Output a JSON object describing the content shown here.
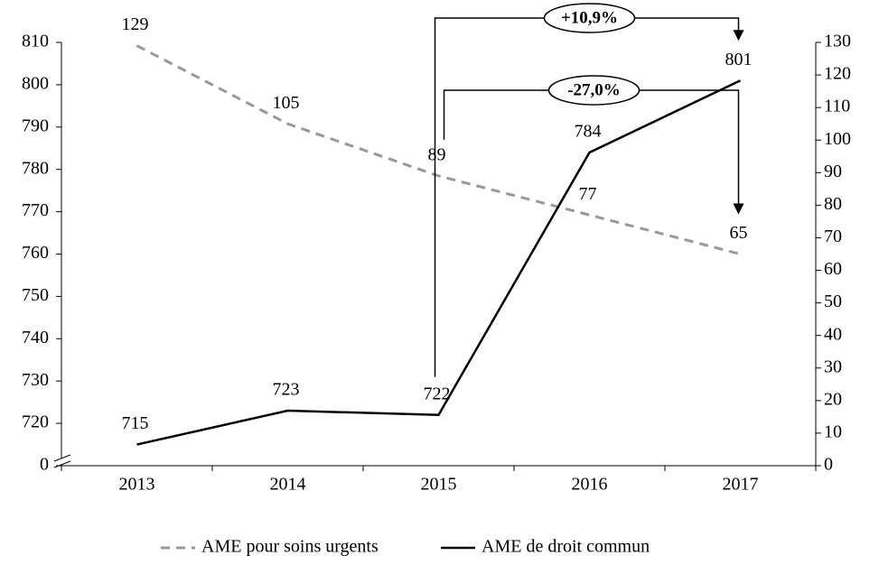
{
  "chart_data": {
    "type": "line",
    "categories": [
      "2013",
      "2014",
      "2015",
      "2016",
      "2017"
    ],
    "series": [
      {
        "name": "AME pour soins urgents",
        "color": "#999999",
        "dash": true,
        "axis": "y2",
        "values": [
          129,
          105,
          89,
          77,
          65
        ]
      },
      {
        "name": "AME de droit commun",
        "color": "#000000",
        "dash": false,
        "values": [
          715,
          723,
          722,
          784,
          801
        ]
      }
    ],
    "ylim": [
      0,
      810
    ],
    "yticks": [
      0,
      720,
      730,
      740,
      750,
      760,
      770,
      780,
      790,
      800,
      810
    ],
    "axis_break": true,
    "y2lim": [
      0,
      130
    ],
    "y2ticks": [
      0,
      10,
      20,
      30,
      40,
      50,
      60,
      70,
      80,
      90,
      100,
      110,
      120,
      130
    ],
    "annotations": [
      {
        "text": "+10,9%",
        "series": 1,
        "from": 2,
        "to": 4
      },
      {
        "text": "-27,0%",
        "series": 0,
        "from": 2,
        "to": 4
      }
    ],
    "legend": "bottom"
  }
}
